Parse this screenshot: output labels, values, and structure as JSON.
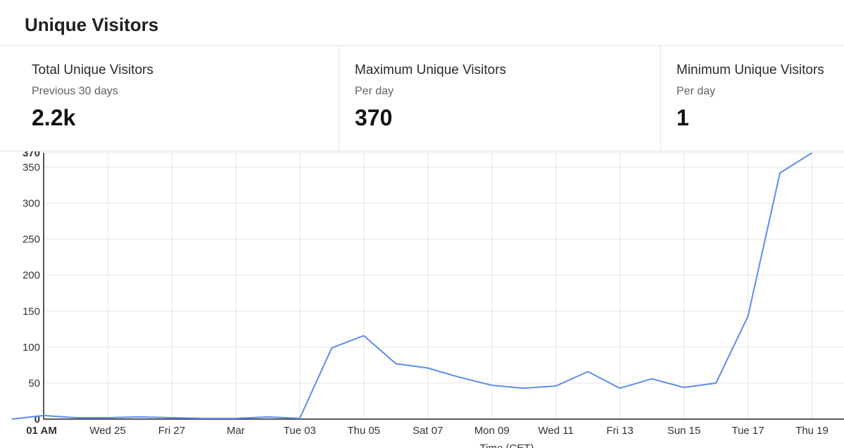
{
  "title": "Unique Visitors",
  "stats": [
    {
      "label": "Total Unique Visitors",
      "sub": "Previous 30 days",
      "value": "2.2k"
    },
    {
      "label": "Maximum Unique Visitors",
      "sub": "Per day",
      "value": "370"
    },
    {
      "label": "Minimum Unique Visitors",
      "sub": "Per day",
      "value": "1"
    }
  ],
  "chart_data": {
    "type": "line",
    "x_start": "2026-02-23T01:00",
    "x_end": "2026-03-20T01:00",
    "x_ticks": [
      {
        "label": "01 AM",
        "value": "2026-02-23T01:00",
        "bold": true
      },
      {
        "label": "Wed 25",
        "value": "2026-02-25T01:00"
      },
      {
        "label": "Fri 27",
        "value": "2026-02-27T01:00"
      },
      {
        "label": "Mar",
        "value": "2026-03-01T01:00"
      },
      {
        "label": "Tue 03",
        "value": "2026-03-03T01:00"
      },
      {
        "label": "Thu 05",
        "value": "2026-03-05T01:00"
      },
      {
        "label": "Sat 07",
        "value": "2026-03-07T01:00"
      },
      {
        "label": "Mon 09",
        "value": "2026-03-09T01:00"
      },
      {
        "label": "Wed 11",
        "value": "2026-03-11T01:00"
      },
      {
        "label": "Fri 13",
        "value": "2026-03-13T01:00"
      },
      {
        "label": "Sun 15",
        "value": "2026-03-15T01:00"
      },
      {
        "label": "Tue 17",
        "value": "2026-03-17T01:00"
      },
      {
        "label": "Thu 19",
        "value": "2026-03-19T01:00"
      }
    ],
    "y_ticks": [
      {
        "label": "0",
        "value": 0,
        "bold": true
      },
      {
        "label": "50",
        "value": 50
      },
      {
        "label": "100",
        "value": 100
      },
      {
        "label": "150",
        "value": 150
      },
      {
        "label": "200",
        "value": 200
      },
      {
        "label": "250",
        "value": 250
      },
      {
        "label": "300",
        "value": 300
      },
      {
        "label": "350",
        "value": 350
      },
      {
        "label": "370",
        "value": 370,
        "bold": true
      }
    ],
    "ylim": [
      0,
      370
    ],
    "xlabel": "Time (CET)",
    "ylabel": "",
    "grid": true,
    "series": [
      {
        "color": "#5b8def",
        "points": [
          [
            "2026-02-22T01:00",
            0
          ],
          [
            "2026-02-23T01:00",
            5
          ],
          [
            "2026-02-24T01:00",
            2
          ],
          [
            "2026-02-25T01:00",
            2
          ],
          [
            "2026-02-26T01:00",
            3
          ],
          [
            "2026-02-27T01:00",
            2
          ],
          [
            "2026-02-28T01:00",
            1
          ],
          [
            "2026-03-01T01:00",
            1
          ],
          [
            "2026-03-02T01:00",
            3
          ],
          [
            "2026-03-03T01:00",
            1
          ],
          [
            "2026-03-04T01:00",
            99
          ],
          [
            "2026-03-05T01:00",
            116
          ],
          [
            "2026-03-06T01:00",
            77
          ],
          [
            "2026-03-07T01:00",
            71
          ],
          [
            "2026-03-08T01:00",
            58
          ],
          [
            "2026-03-09T01:00",
            47
          ],
          [
            "2026-03-10T01:00",
            43
          ],
          [
            "2026-03-11T01:00",
            46
          ],
          [
            "2026-03-12T01:00",
            66
          ],
          [
            "2026-03-13T01:00",
            43
          ],
          [
            "2026-03-14T01:00",
            56
          ],
          [
            "2026-03-15T01:00",
            44
          ],
          [
            "2026-03-16T01:00",
            50
          ],
          [
            "2026-03-17T01:00",
            143
          ],
          [
            "2026-03-18T01:00",
            342
          ],
          [
            "2026-03-19T01:00",
            370
          ]
        ]
      }
    ]
  }
}
